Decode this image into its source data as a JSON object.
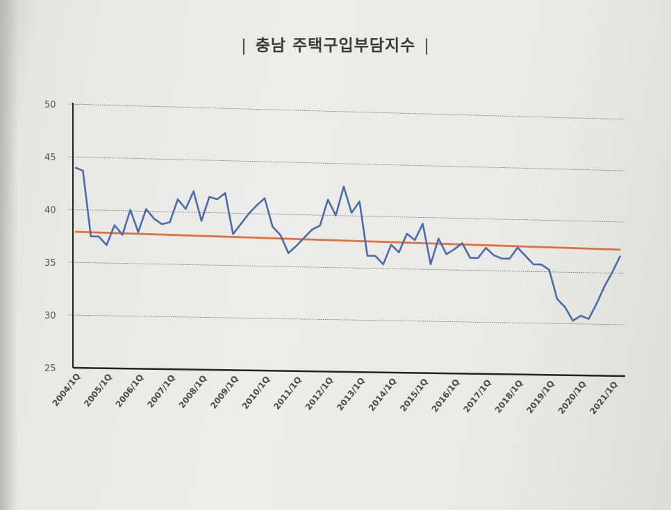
{
  "chart_data": {
    "type": "line",
    "title": "충남 주택구입부담지수",
    "title_prefix": "|",
    "title_suffix": "|",
    "ylim": [
      25,
      50
    ],
    "y_ticks": [
      "25",
      "30",
      "35",
      "40",
      "45",
      "50"
    ],
    "grid": true,
    "x_tick_labels": [
      "2004/1Q",
      "2005/1Q",
      "2006/1Q",
      "2007/1Q",
      "2008/1Q",
      "2009/1Q",
      "2010/1Q",
      "2011/1Q",
      "2012/1Q",
      "2013/1Q",
      "2014/1Q",
      "2015/1Q",
      "2016/1Q",
      "2017/1Q",
      "2018/1Q",
      "2019/1Q",
      "2020/1Q",
      "2021/1Q"
    ],
    "series": [
      {
        "color": "#4a6ba8",
        "values": [
          44.0,
          43.7,
          37.5,
          37.5,
          36.7,
          38.6,
          37.7,
          40.1,
          38.0,
          40.2,
          39.3,
          38.8,
          39.0,
          41.2,
          40.3,
          42.0,
          39.2,
          41.5,
          41.3,
          41.9,
          38.0,
          39.0,
          40.0,
          40.8,
          41.5,
          38.8,
          38.0,
          36.3,
          37.0,
          37.8,
          38.6,
          39.0,
          41.5,
          40.0,
          42.8,
          40.3,
          41.4,
          36.2,
          36.2,
          35.4,
          37.3,
          36.6,
          38.4,
          37.8,
          39.4,
          35.5,
          38.0,
          36.5,
          37.0,
          37.6,
          36.2,
          36.2,
          37.2,
          36.5,
          36.2,
          36.2,
          37.3,
          36.5,
          35.7,
          35.7,
          35.2,
          32.4,
          31.6,
          30.3,
          30.8,
          30.5,
          32.0,
          33.7,
          35.1,
          36.7
        ]
      },
      {
        "color": "#e2703f",
        "values": [
          37.9,
          37.3
        ]
      }
    ]
  }
}
